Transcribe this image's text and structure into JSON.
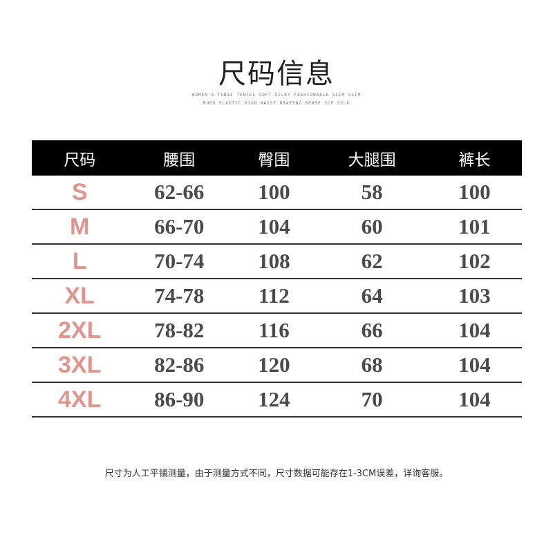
{
  "title": "尺码信息",
  "subtitle_lines": [
    "WOMEN'S TENSE TENCEL SOFT SILKY FASHIONABLE SLIM SLIM",
    "BUDS ELASTIC HIGH WAIST DRAPING SENSE ICE SILK"
  ],
  "table": {
    "headers": [
      "尺码",
      "腰围",
      "臀围",
      "大腿围",
      "裤长"
    ],
    "rows": [
      [
        "S",
        "62-66",
        "100",
        "58",
        "100"
      ],
      [
        "M",
        "66-70",
        "104",
        "60",
        "101"
      ],
      [
        "L",
        "70-74",
        "108",
        "62",
        "102"
      ],
      [
        "XL",
        "74-78",
        "112",
        "64",
        "103"
      ],
      [
        "2XL",
        "78-82",
        "116",
        "66",
        "104"
      ],
      [
        "3XL",
        "82-86",
        "120",
        "68",
        "104"
      ],
      [
        "4XL",
        "86-90",
        "124",
        "70",
        "104"
      ]
    ]
  },
  "note": "尺寸为人工平铺测量，由于测量方式不同，尺寸数据可能存在1-3CM误差，详询客服。",
  "colors": {
    "size_label": "#e0958d",
    "header_bg": "#000000",
    "value_text": "#4a4a4a"
  }
}
